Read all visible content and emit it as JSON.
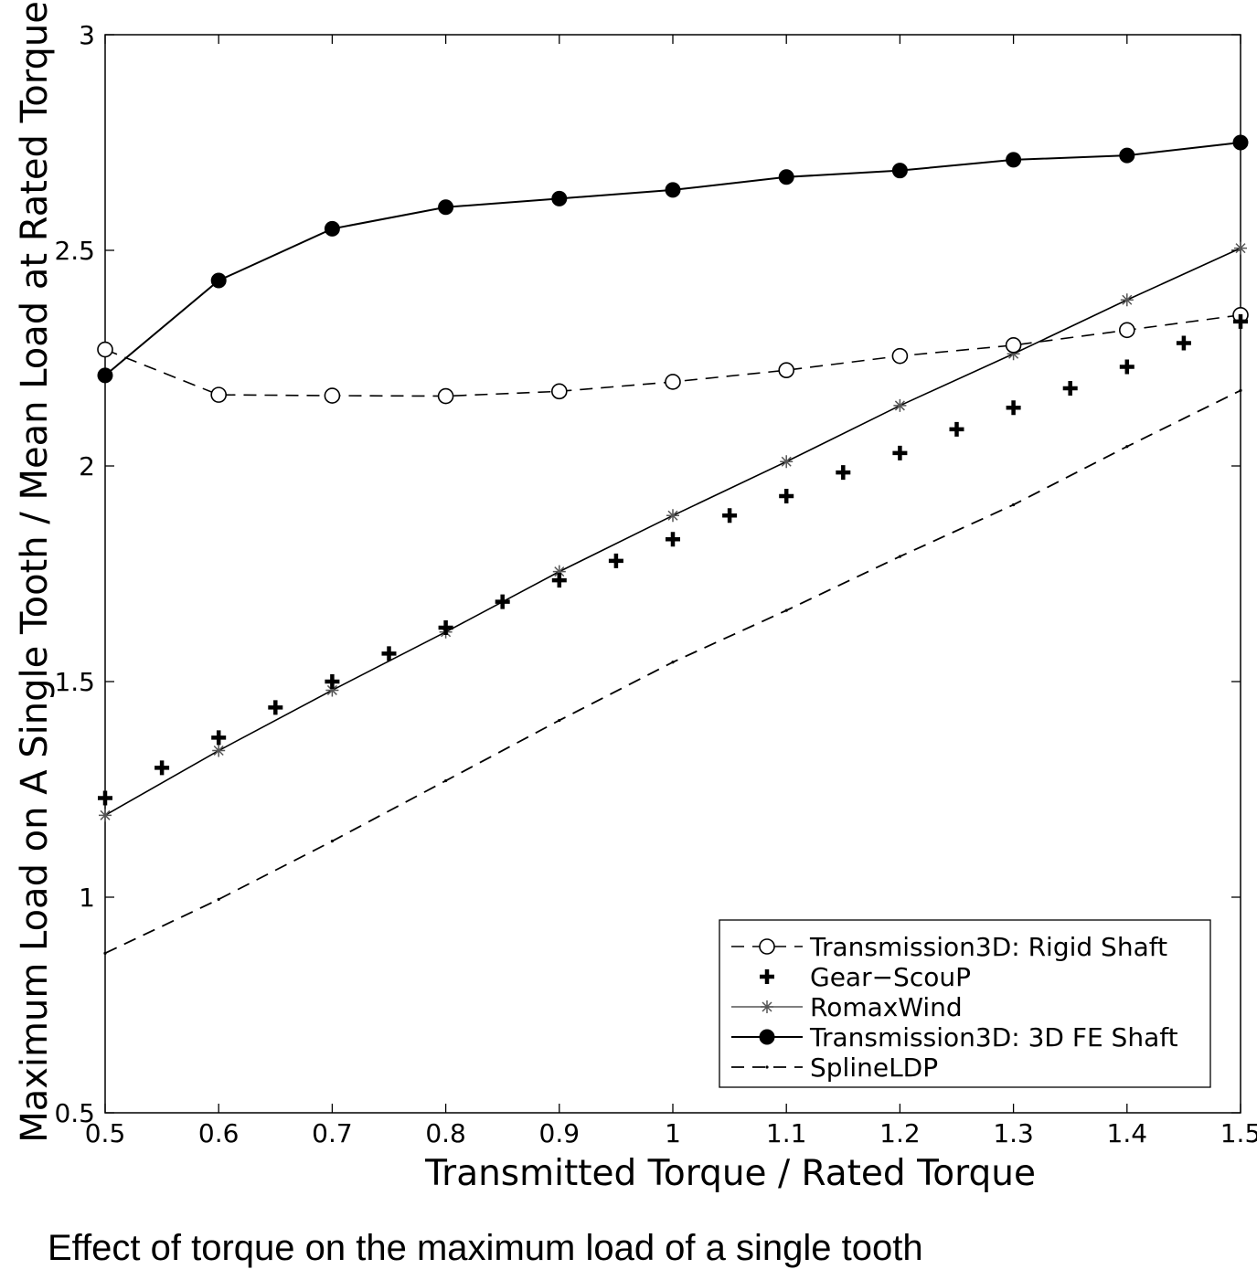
{
  "chart_data": {
    "type": "line",
    "ylabel": "Maximum Load on A Single Tooth / Mean Load at Rated Torque",
    "xlabel": "Transmitted Torque / Rated Torque",
    "xlim": [
      0.5,
      1.5
    ],
    "ylim": [
      0.5,
      3
    ],
    "x_ticks": [
      "0.5",
      "0.6",
      "0.7",
      "0.8",
      "0.9",
      "1",
      "1.1",
      "1.2",
      "1.3",
      "1.4",
      "1.5"
    ],
    "y_ticks": [
      "0.5",
      "1",
      "1.5",
      "2",
      "2.5",
      "3"
    ],
    "grid": false,
    "legend_position": "bottom-right",
    "series": [
      {
        "name": "Transmission3D: Rigid Shaft",
        "style": "dashed-open-circle",
        "x": [
          0.5,
          0.6,
          0.7,
          0.8,
          0.9,
          1.0,
          1.1,
          1.2,
          1.3,
          1.4,
          1.5
        ],
        "y": [
          2.27,
          2.165,
          2.163,
          2.162,
          2.173,
          2.195,
          2.222,
          2.255,
          2.28,
          2.315,
          2.35
        ]
      },
      {
        "name": "Gear−ScouP",
        "style": "plus-marker",
        "x": [
          0.5,
          0.55,
          0.6,
          0.65,
          0.7,
          0.75,
          0.8,
          0.85,
          0.9,
          0.95,
          1.0,
          1.05,
          1.1,
          1.15,
          1.2,
          1.25,
          1.3,
          1.35,
          1.4,
          1.45,
          1.5
        ],
        "y": [
          1.23,
          1.3,
          1.37,
          1.44,
          1.5,
          1.565,
          1.625,
          1.685,
          1.735,
          1.78,
          1.83,
          1.885,
          1.93,
          1.985,
          2.03,
          2.085,
          2.135,
          2.18,
          2.23,
          2.285,
          2.335
        ]
      },
      {
        "name": "RomaxWind",
        "style": "solid-star",
        "x": [
          0.5,
          0.6,
          0.7,
          0.8,
          0.9,
          1.0,
          1.1,
          1.2,
          1.3,
          1.4,
          1.5
        ],
        "y": [
          1.19,
          1.34,
          1.48,
          1.615,
          1.755,
          1.885,
          2.01,
          2.14,
          2.26,
          2.385,
          2.505
        ]
      },
      {
        "name": "Transmission3D: 3D FE Shaft",
        "style": "solid-filled-circle",
        "x": [
          0.5,
          0.6,
          0.7,
          0.8,
          0.9,
          1.0,
          1.1,
          1.2,
          1.3,
          1.4,
          1.5
        ],
        "y": [
          2.21,
          2.43,
          2.55,
          2.6,
          2.62,
          2.64,
          2.67,
          2.685,
          2.71,
          2.72,
          2.75
        ]
      },
      {
        "name": "SplineLDP",
        "style": "dashed-dot",
        "x": [
          0.5,
          0.6,
          0.7,
          0.8,
          0.9,
          1.0,
          1.1,
          1.2,
          1.3,
          1.4,
          1.5
        ],
        "y": [
          0.87,
          0.995,
          1.13,
          1.27,
          1.41,
          1.545,
          1.665,
          1.79,
          1.91,
          2.045,
          2.175
        ]
      }
    ]
  },
  "caption": "Effect of torque on the maximum load of a single tooth"
}
